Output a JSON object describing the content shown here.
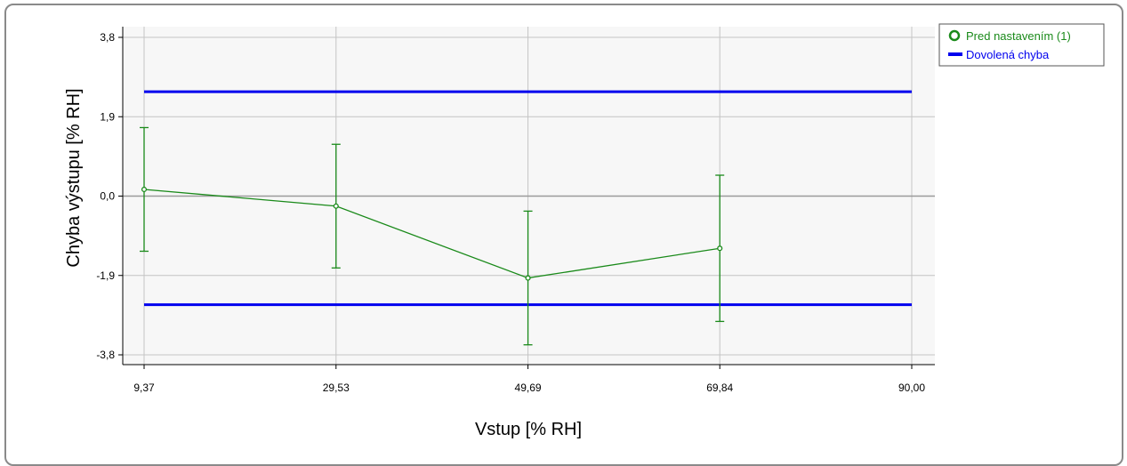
{
  "chart_data": {
    "type": "line",
    "xlabel": "Vstup [% RH]",
    "ylabel": "Chyba výstupu [% RH]",
    "xlim": [
      9.37,
      90.0
    ],
    "ylim": [
      -3.8,
      3.8
    ],
    "x_ticks": [
      "9,37",
      "29,53",
      "49,69",
      "69,84",
      "90,00"
    ],
    "y_ticks": [
      "3,8",
      "1,9",
      "0,0",
      "-1,9",
      "-3,8"
    ],
    "grid": true,
    "legend_position": "right",
    "series": [
      {
        "name": "Pred nastavením (1)",
        "color": "#1a8a1a",
        "x": [
          9.37,
          29.53,
          49.69,
          69.84
        ],
        "y": [
          0.16,
          -0.24,
          -1.96,
          -1.25
        ],
        "error": [
          1.48,
          1.48,
          1.6,
          1.75
        ]
      },
      {
        "name": "Dovolená chyba",
        "color": "#0000ee",
        "lines": [
          {
            "x": [
              9.37,
              90.0
            ],
            "y": [
              2.5,
              2.5
            ]
          },
          {
            "x": [
              9.37,
              90.0
            ],
            "y": [
              -2.6,
              -2.6
            ]
          }
        ]
      }
    ]
  }
}
